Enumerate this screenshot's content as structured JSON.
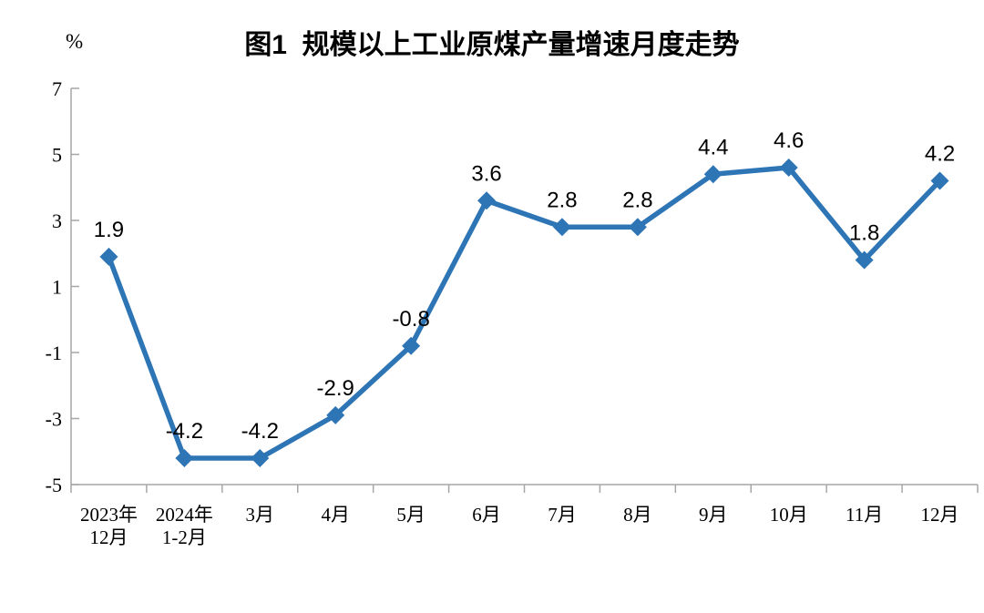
{
  "figure": {
    "background_color": "#ffffff"
  },
  "chart_data": {
    "type": "line",
    "title": "图1  规模以上工业原煤产量增速月度走势",
    "unit_label": "%",
    "categories": [
      "2023年\n12月",
      "2024年\n1-2月",
      "3月",
      "4月",
      "5月",
      "6月",
      "7月",
      "8月",
      "9月",
      "10月",
      "11月",
      "12月"
    ],
    "values": [
      1.9,
      -4.2,
      -4.2,
      -2.9,
      -0.8,
      3.6,
      2.8,
      2.8,
      4.4,
      4.6,
      1.8,
      4.2
    ],
    "data_labels": [
      "1.9",
      "-4.2",
      "-4.2",
      "-2.9",
      "-0.8",
      "3.6",
      "2.8",
      "2.8",
      "4.4",
      "4.6",
      "1.8",
      "4.2"
    ],
    "series_name": "规模以上工业原煤产量增速",
    "ylim": [
      -5,
      7
    ],
    "yticks": [
      7,
      5,
      3,
      1,
      -1,
      -3,
      -5
    ],
    "grid": false,
    "legend": false,
    "marker": "diamond",
    "series_color": "#2E75B6",
    "axis_color": "#A6A6A6",
    "label_color": "#000000"
  }
}
